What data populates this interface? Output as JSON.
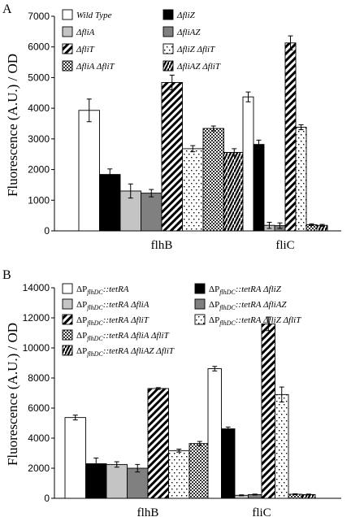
{
  "chart_data": [
    {
      "type": "bar",
      "panel_label": "A",
      "ylabel": "Fluorescence (A.U.) / OD",
      "xlabel": "",
      "ylim": [
        0,
        7000
      ],
      "yticks": [
        "0",
        "1000",
        "2000",
        "3000",
        "4000",
        "5000",
        "6000",
        "7000"
      ],
      "categories": [
        "flhB",
        "fliC"
      ],
      "legend_position": "top",
      "series": [
        {
          "name": "Wild Type",
          "pattern": "white",
          "values": [
            3930,
            4370
          ],
          "errors": [
            370,
            160
          ]
        },
        {
          "name": "ΔfliZ",
          "pattern": "black",
          "values": [
            1840,
            2820
          ],
          "errors": [
            180,
            140
          ]
        },
        {
          "name": "ΔfliA",
          "pattern": "lightgray",
          "values": [
            1300,
            180
          ],
          "errors": [
            230,
            100
          ]
        },
        {
          "name": "ΔfliAZ",
          "pattern": "darkgray",
          "values": [
            1230,
            170
          ],
          "errors": [
            120,
            90
          ]
        },
        {
          "name": "ΔfliT",
          "pattern": "diagonal",
          "values": [
            4840,
            6130
          ],
          "errors": [
            240,
            230
          ]
        },
        {
          "name": "ΔfliZ ΔfliT",
          "pattern": "dots",
          "values": [
            2680,
            3380
          ],
          "errors": [
            100,
            80
          ]
        },
        {
          "name": "ΔfliA ΔfliT",
          "pattern": "checker",
          "values": [
            3340,
            200
          ],
          "errors": [
            80,
            30
          ]
        },
        {
          "name": "ΔfliAZ ΔfliT",
          "pattern": "zigzag",
          "values": [
            2560,
            180
          ],
          "errors": [
            120,
            30
          ]
        }
      ]
    },
    {
      "type": "bar",
      "panel_label": "B",
      "ylabel": "Fluorescence (A.U.) / OD",
      "xlabel": "",
      "ylim": [
        0,
        14000
      ],
      "yticks": [
        "0",
        "2000",
        "4000",
        "6000",
        "8000",
        "10000",
        "12000",
        "14000"
      ],
      "categories": [
        "flhB",
        "fliC"
      ],
      "legend_position": "top",
      "series": [
        {
          "name": "ΔPflhDC::tetRA",
          "pattern": "white",
          "values": [
            5370,
            8620
          ],
          "errors": [
            160,
            150
          ]
        },
        {
          "name": "ΔPflhDC::tetRA ΔfliZ",
          "pattern": "black",
          "values": [
            2300,
            4620
          ],
          "errors": [
            380,
            120
          ]
        },
        {
          "name": "ΔPflhDC::tetRA ΔfliA",
          "pattern": "lightgray",
          "values": [
            2250,
            200
          ],
          "errors": [
            180,
            30
          ]
        },
        {
          "name": "ΔPflhDC::tetRA ΔfliAZ",
          "pattern": "darkgray",
          "values": [
            2000,
            250
          ],
          "errors": [
            250,
            30
          ]
        },
        {
          "name": "ΔPflhDC::tetRA ΔfliT",
          "pattern": "diagonal",
          "values": [
            7300,
            11600
          ],
          "errors": [
            60,
            450
          ]
        },
        {
          "name": "ΔPflhDC::tetRA ΔfliZ ΔfliT",
          "pattern": "dots",
          "values": [
            3170,
            6900
          ],
          "errors": [
            100,
            500
          ]
        },
        {
          "name": "ΔPflhDC::tetRA ΔfliA ΔfliT",
          "pattern": "checker",
          "values": [
            3640,
            270
          ],
          "errors": [
            140,
            30
          ]
        },
        {
          "name": "ΔPflhDC::tetRA ΔfliAZ ΔfliT",
          "pattern": "zigzag",
          "values": [
            3280,
            250
          ],
          "errors": [
            120,
            30
          ]
        }
      ]
    }
  ],
  "legend_text": {
    "A": [
      {
        "pre": "Wild Type",
        "sub": "",
        "post": ""
      },
      {
        "pre": "ΔfliZ",
        "sub": "",
        "post": ""
      },
      {
        "pre": "ΔfliA",
        "sub": "",
        "post": ""
      },
      {
        "pre": "ΔfliAZ",
        "sub": "",
        "post": ""
      },
      {
        "pre": "ΔfliT",
        "sub": "",
        "post": ""
      },
      {
        "pre": "ΔfliZ ΔfliT",
        "sub": "",
        "post": ""
      },
      {
        "pre": "ΔfliA ΔfliT",
        "sub": "",
        "post": ""
      },
      {
        "pre": "ΔfliAZ ΔfliT",
        "sub": "",
        "post": ""
      }
    ],
    "B": [
      {
        "pre": "ΔP",
        "sub": "flhDC",
        "post": "::tetRA"
      },
      {
        "pre": "ΔP",
        "sub": "flhDC",
        "post": "::tetRA ΔfliZ"
      },
      {
        "pre": "ΔP",
        "sub": "flhDC",
        "post": "::tetRA ΔfliA"
      },
      {
        "pre": "ΔP",
        "sub": "flhDC",
        "post": "::tetRA ΔfliAZ"
      },
      {
        "pre": "ΔP",
        "sub": "flhDC",
        "post": "::tetRA ΔfliT"
      },
      {
        "pre": "ΔP",
        "sub": "flhDC",
        "post": "::tetRA ΔfliZ ΔfliT"
      },
      {
        "pre": "ΔP",
        "sub": "flhDC",
        "post": "::tetRA ΔfliA ΔfliT"
      },
      {
        "pre": "ΔP",
        "sub": "flhDC",
        "post": "::tetRA ΔfliAZ ΔfliT"
      }
    ]
  }
}
